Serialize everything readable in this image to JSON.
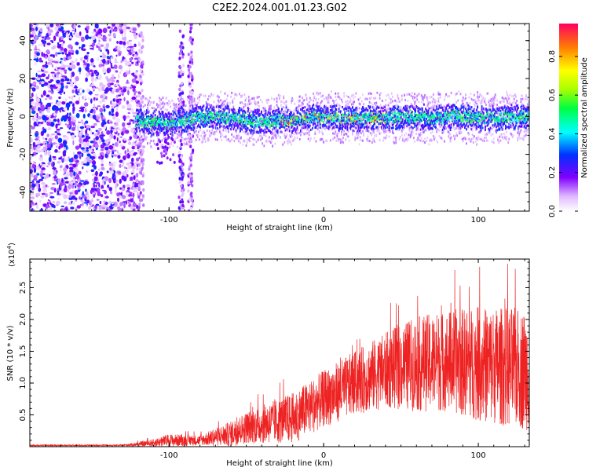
{
  "title": "C2E2.2024.001.01.23.G02",
  "colors": {
    "snr_line": "#ee2222",
    "axis": "#000000",
    "background": "#ffffff"
  },
  "chart_data": [
    {
      "type": "heatmap",
      "id": "spectrogram",
      "xlabel": "Height of straight line (km)",
      "ylabel": "Frequency (Hz)",
      "xlim": [
        -190,
        133
      ],
      "ylim": [
        -50,
        49
      ],
      "xticks": [
        -100,
        0,
        100
      ],
      "xtick_labels": [
        "-100",
        "0",
        "100"
      ],
      "yticks": [
        -40,
        -20,
        0,
        20,
        40
      ],
      "ytick_labels": [
        "-40",
        "-20",
        "0",
        "20",
        "40"
      ],
      "colorbar": {
        "label": "Normalized spectral amplitude",
        "range": [
          0,
          0.97
        ],
        "ticks": [
          0.0,
          0.2,
          0.4,
          0.6,
          0.8
        ],
        "tick_labels": [
          "0.0",
          "0.2",
          "0.4",
          "0.6",
          "0.8"
        ]
      },
      "noise_region_km": [
        -190,
        -122
      ],
      "signal_start_km": -122,
      "signal_center_hz": [
        {
          "x": -120,
          "y": -3
        },
        {
          "x": -110,
          "y": -3
        },
        {
          "x": -100,
          "y": -4
        },
        {
          "x": -90,
          "y": -2
        },
        {
          "x": -75,
          "y": 0
        },
        {
          "x": -60,
          "y": -1
        },
        {
          "x": -50,
          "y": -2
        },
        {
          "x": -40,
          "y": -3
        },
        {
          "x": -30,
          "y": -2
        },
        {
          "x": -20,
          "y": -2
        },
        {
          "x": -5,
          "y": 0
        },
        {
          "x": 10,
          "y": -1
        },
        {
          "x": 25,
          "y": -1
        },
        {
          "x": 40,
          "y": -1
        },
        {
          "x": 55,
          "y": 0
        },
        {
          "x": 70,
          "y": -1
        },
        {
          "x": 85,
          "y": 0
        },
        {
          "x": 100,
          "y": -1
        },
        {
          "x": 115,
          "y": -1
        },
        {
          "x": 130,
          "y": 0
        }
      ]
    },
    {
      "type": "line",
      "id": "snr",
      "xlabel": "Height of straight line (km)",
      "ylabel": "SNR (10 * v/v)",
      "multiplier_label": "(x10",
      "multiplier_exp": "4",
      "multiplier_close": ")",
      "xlim": [
        -190,
        133
      ],
      "ylim": [
        0,
        2.95
      ],
      "xticks": [
        -100,
        0,
        100
      ],
      "xtick_labels": [
        "-100",
        "0",
        "100"
      ],
      "yticks": [
        0.5,
        1.0,
        1.5,
        2.0,
        2.5
      ],
      "ytick_labels": [
        "0.5",
        "1.0",
        "1.5",
        "2.0",
        "2.5"
      ],
      "envelope": [
        {
          "x": -190,
          "mean": 0.02,
          "amp": 0.01
        },
        {
          "x": -130,
          "mean": 0.02,
          "amp": 0.01
        },
        {
          "x": -110,
          "mean": 0.06,
          "amp": 0.06
        },
        {
          "x": -100,
          "mean": 0.1,
          "amp": 0.1
        },
        {
          "x": -80,
          "mean": 0.1,
          "amp": 0.08
        },
        {
          "x": -60,
          "mean": 0.2,
          "amp": 0.2
        },
        {
          "x": -50,
          "mean": 0.3,
          "amp": 0.25
        },
        {
          "x": -40,
          "mean": 0.35,
          "amp": 0.3
        },
        {
          "x": -20,
          "mean": 0.45,
          "amp": 0.4
        },
        {
          "x": 0,
          "mean": 0.75,
          "amp": 0.45
        },
        {
          "x": 20,
          "mean": 1.0,
          "amp": 0.5
        },
        {
          "x": 40,
          "mean": 1.2,
          "amp": 0.6
        },
        {
          "x": 60,
          "mean": 1.3,
          "amp": 0.75
        },
        {
          "x": 80,
          "mean": 1.35,
          "amp": 0.8
        },
        {
          "x": 100,
          "mean": 1.3,
          "amp": 0.9
        },
        {
          "x": 120,
          "mean": 1.25,
          "amp": 0.95
        },
        {
          "x": 133,
          "mean": 1.2,
          "amp": 0.95
        }
      ]
    }
  ]
}
